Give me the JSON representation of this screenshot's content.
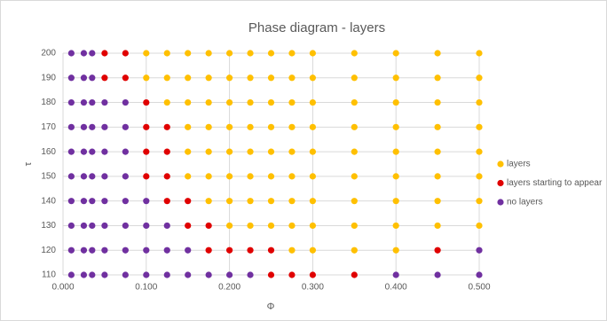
{
  "chart_data": {
    "type": "scatter",
    "title": "Phase diagram - layers",
    "x_label": "Φ",
    "y_label": "τ",
    "xlim": [
      0,
      0.5
    ],
    "xticks": [
      {
        "value": 0,
        "label": "0.000"
      },
      {
        "value": 0.1,
        "label": "0.100"
      },
      {
        "value": 0.2,
        "label": "0.200"
      },
      {
        "value": 0.3,
        "label": "0.300"
      },
      {
        "value": 0.4,
        "label": "0.400"
      },
      {
        "value": 0.5,
        "label": "0.500"
      }
    ],
    "ylim": [
      110,
      200
    ],
    "yticks": [
      110,
      120,
      130,
      140,
      150,
      160,
      170,
      180,
      190,
      200
    ],
    "grid": true,
    "legend": "right",
    "series": [
      {
        "name": "layers",
        "color": "#ffc000",
        "x": [
          0.1,
          0.125,
          0.15,
          0.175,
          0.2,
          0.225,
          0.25,
          0.275,
          0.3,
          0.35,
          0.4,
          0.45,
          0.5,
          0.1,
          0.125,
          0.15,
          0.175,
          0.2,
          0.225,
          0.25,
          0.275,
          0.3,
          0.35,
          0.4,
          0.45,
          0.5,
          0.125,
          0.15,
          0.175,
          0.2,
          0.225,
          0.25,
          0.275,
          0.3,
          0.35,
          0.4,
          0.45,
          0.5,
          0.15,
          0.175,
          0.2,
          0.225,
          0.25,
          0.275,
          0.3,
          0.35,
          0.4,
          0.45,
          0.5,
          0.15,
          0.175,
          0.2,
          0.225,
          0.25,
          0.275,
          0.3,
          0.35,
          0.4,
          0.45,
          0.5,
          0.15,
          0.175,
          0.2,
          0.225,
          0.25,
          0.275,
          0.3,
          0.35,
          0.4,
          0.45,
          0.5,
          0.175,
          0.2,
          0.225,
          0.25,
          0.275,
          0.3,
          0.35,
          0.4,
          0.45,
          0.5,
          0.2,
          0.225,
          0.25,
          0.275,
          0.3,
          0.35,
          0.4,
          0.45,
          0.5,
          0.275,
          0.3,
          0.35,
          0.4
        ],
        "values": [
          200,
          200,
          200,
          200,
          200,
          200,
          200,
          200,
          200,
          200,
          200,
          200,
          200,
          190,
          190,
          190,
          190,
          190,
          190,
          190,
          190,
          190,
          190,
          190,
          190,
          190,
          180,
          180,
          180,
          180,
          180,
          180,
          180,
          180,
          180,
          180,
          180,
          180,
          170,
          170,
          170,
          170,
          170,
          170,
          170,
          170,
          170,
          170,
          170,
          160,
          160,
          160,
          160,
          160,
          160,
          160,
          160,
          160,
          160,
          160,
          150,
          150,
          150,
          150,
          150,
          150,
          150,
          150,
          150,
          150,
          150,
          140,
          140,
          140,
          140,
          140,
          140,
          140,
          140,
          140,
          140,
          130,
          130,
          130,
          130,
          130,
          130,
          130,
          130,
          130,
          120,
          120,
          120,
          120
        ]
      },
      {
        "name": "layers starting to appear",
        "color": "#e00000",
        "x": [
          0.05,
          0.075,
          0.05,
          0.075,
          0.1,
          0.1,
          0.125,
          0.1,
          0.125,
          0.1,
          0.125,
          0.125,
          0.15,
          0.15,
          0.175,
          0.175,
          0.2,
          0.225,
          0.25,
          0.45,
          0.25,
          0.275,
          0.3,
          0.35
        ],
        "values": [
          200,
          200,
          190,
          190,
          180,
          170,
          170,
          160,
          160,
          150,
          150,
          140,
          140,
          130,
          130,
          120,
          120,
          120,
          120,
          120,
          110,
          110,
          110,
          110
        ]
      },
      {
        "name": "no layers",
        "color": "#7030a0",
        "x": [
          0.01,
          0.025,
          0.035,
          0.01,
          0.025,
          0.035,
          0.01,
          0.025,
          0.035,
          0.05,
          0.075,
          0.01,
          0.025,
          0.035,
          0.05,
          0.075,
          0.01,
          0.025,
          0.035,
          0.05,
          0.075,
          0.01,
          0.025,
          0.035,
          0.05,
          0.075,
          0.01,
          0.025,
          0.035,
          0.05,
          0.075,
          0.1,
          0.01,
          0.025,
          0.035,
          0.05,
          0.075,
          0.1,
          0.125,
          0.01,
          0.025,
          0.035,
          0.05,
          0.075,
          0.1,
          0.125,
          0.15,
          0.5,
          0.01,
          0.025,
          0.035,
          0.05,
          0.075,
          0.1,
          0.125,
          0.15,
          0.175,
          0.2,
          0.225,
          0.4,
          0.45,
          0.5
        ],
        "values": [
          200,
          200,
          200,
          190,
          190,
          190,
          180,
          180,
          180,
          180,
          180,
          170,
          170,
          170,
          170,
          170,
          160,
          160,
          160,
          160,
          160,
          150,
          150,
          150,
          150,
          150,
          140,
          140,
          140,
          140,
          140,
          140,
          130,
          130,
          130,
          130,
          130,
          130,
          130,
          120,
          120,
          120,
          120,
          120,
          120,
          120,
          120,
          120,
          110,
          110,
          110,
          110,
          110,
          110,
          110,
          110,
          110,
          110,
          110,
          110,
          110,
          110
        ]
      }
    ]
  }
}
